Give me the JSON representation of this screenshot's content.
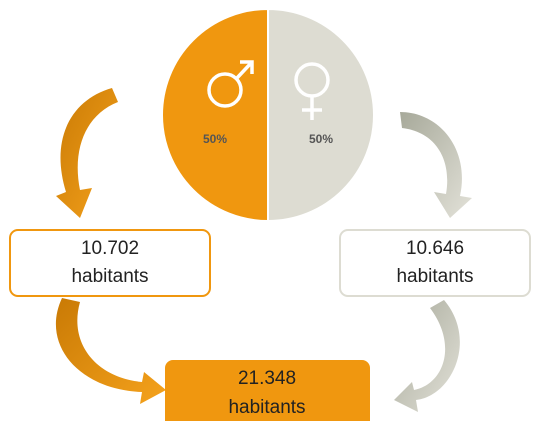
{
  "chart_data": {
    "type": "pie",
    "values": [
      50,
      50
    ],
    "value_labels": [
      "50%",
      "50%"
    ],
    "colors": [
      "#f0970f",
      "#dddcd2"
    ]
  },
  "totals": [
    {
      "number": "10.702",
      "unit": "habitants"
    },
    {
      "number": "10.646",
      "unit": "habitants"
    },
    {
      "number": "21.348",
      "unit": "habitants"
    }
  ]
}
